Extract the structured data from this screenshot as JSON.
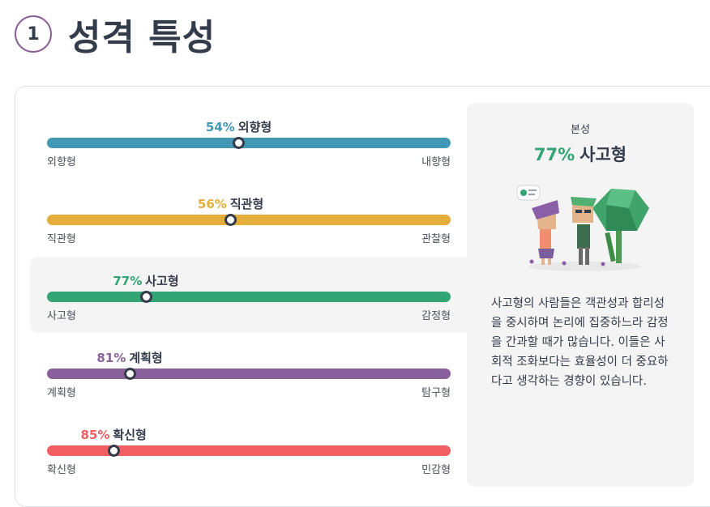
{
  "header": {
    "step_number": "1",
    "title": "성격 특성"
  },
  "traits": [
    {
      "percent": "54%",
      "name": "외향형",
      "left_label": "외향형",
      "right_label": "내향형",
      "position": 0.475,
      "color": "#4298b4"
    },
    {
      "percent": "56%",
      "name": "직관형",
      "left_label": "직관형",
      "right_label": "관찰형",
      "position": 0.455,
      "color": "#e4ae3a"
    },
    {
      "percent": "77%",
      "name": "사고형",
      "left_label": "사고형",
      "right_label": "감정형",
      "position": 0.245,
      "color": "#33a474",
      "selected": true
    },
    {
      "percent": "81%",
      "name": "계획형",
      "left_label": "계획형",
      "right_label": "탐구형",
      "position": 0.205,
      "color": "#88619a"
    },
    {
      "percent": "85%",
      "name": "확신형",
      "left_label": "확신형",
      "right_label": "민감형",
      "position": 0.165,
      "color": "#f25e62"
    }
  ],
  "panel": {
    "subtitle": "본성",
    "percent": "77%",
    "type_name": "사고형",
    "description": "사고형의 사람들은 객관성과 합리성을 중시하며 논리에 집중하느라 감정을 간과할 때가 많습니다. 이들은 사회적 조화보다는 효율성이 더 중요하다고 생각하는 경향이 있습니다.",
    "illustration_icon": "thinking-characters-illustration",
    "accent_color": "#33a474"
  }
}
